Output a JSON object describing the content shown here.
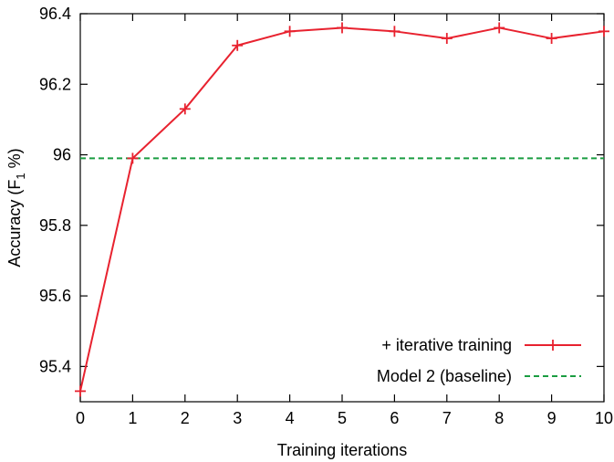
{
  "chart_data": {
    "type": "line",
    "xlabel": "Training iterations",
    "ylabel_main": "Accuracy (F",
    "ylabel_sub": "1",
    "ylabel_end": " %)",
    "xlim": [
      0,
      10
    ],
    "ylim": [
      95.3,
      96.4
    ],
    "xticks": [
      0,
      1,
      2,
      3,
      4,
      5,
      6,
      7,
      8,
      9,
      10
    ],
    "xtick_labels": [
      "0",
      "1",
      "2",
      "3",
      "4",
      "5",
      "6",
      "7",
      "8",
      "9",
      "10"
    ],
    "yticks": [
      95.4,
      95.6,
      95.8,
      96.0,
      96.2,
      96.4
    ],
    "ytick_labels": [
      "95.4",
      "95.6",
      "95.8",
      "96",
      "96.2",
      "96.4"
    ],
    "grid": false,
    "legend_position": "bottom-right",
    "series": [
      {
        "name": "+ iterative training",
        "color": "#e8222f",
        "style": "solid",
        "marker": "plus",
        "x": [
          0,
          1,
          2,
          3,
          4,
          5,
          6,
          7,
          8,
          9,
          10
        ],
        "y": [
          95.33,
          95.99,
          96.13,
          96.31,
          96.35,
          96.36,
          96.35,
          96.33,
          96.36,
          96.33,
          96.35
        ]
      },
      {
        "name": "Model 2 (baseline)",
        "color": "#1a9d41",
        "style": "dashed",
        "marker": "none",
        "constant_y": 95.99
      }
    ]
  }
}
